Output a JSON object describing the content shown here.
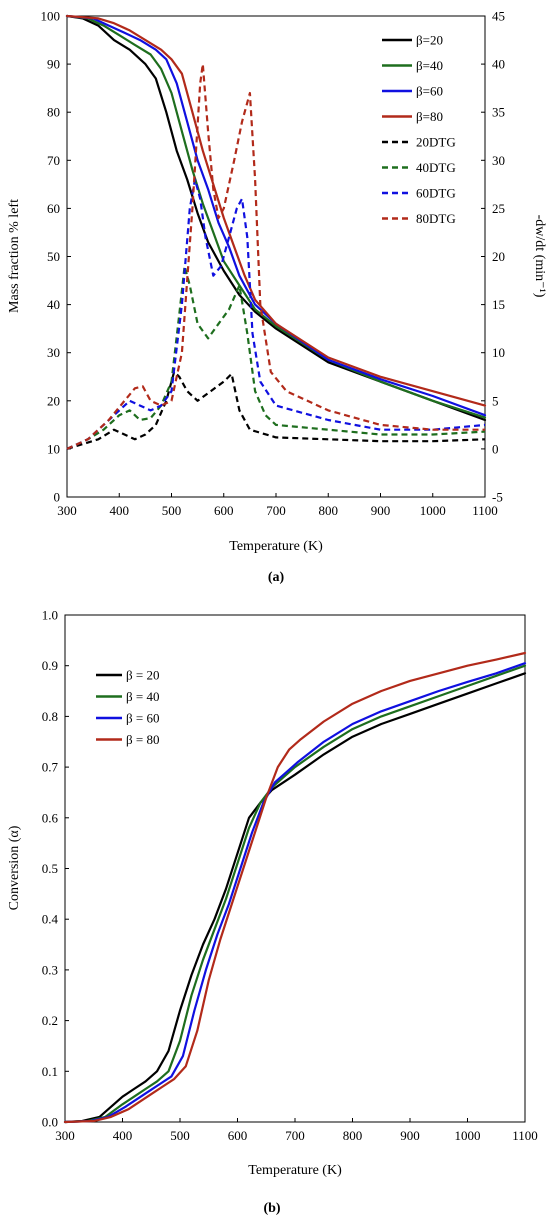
{
  "chart_data": [
    {
      "type": "line",
      "panel": "a",
      "caption": "(a)",
      "xlabel": "Temperature (K)",
      "ylabel": "Mass fraction % left",
      "y2label": "-dw/dt (min⁻¹)",
      "xlim": [
        300,
        1100
      ],
      "ylim": [
        0,
        100
      ],
      "y2lim": [
        -5,
        45
      ],
      "xticks": [
        "300",
        "400",
        "500",
        "600",
        "700",
        "800",
        "900",
        "1000",
        "1100"
      ],
      "yticks": [
        "0",
        "10",
        "20",
        "30",
        "40",
        "50",
        "60",
        "70",
        "80",
        "90",
        "100"
      ],
      "y2ticks": [
        "-5",
        "0",
        "5",
        "10",
        "15",
        "20",
        "25",
        "30",
        "35",
        "40",
        "45"
      ],
      "legend_position": "top-right",
      "series": [
        {
          "name": "β=20",
          "axis": "left",
          "color": "#000000",
          "dash": "solid",
          "x": [
            300,
            330,
            360,
            390,
            420,
            450,
            470,
            490,
            500,
            510,
            530,
            550,
            570,
            600,
            630,
            660,
            700,
            800,
            900,
            1000,
            1100
          ],
          "y": [
            100,
            99.5,
            98,
            95,
            93,
            90,
            87,
            80,
            76,
            72,
            66,
            59,
            53,
            47,
            42,
            38.5,
            35,
            28,
            24,
            20,
            16
          ]
        },
        {
          "name": "β=40",
          "axis": "left",
          "color": "#1e6e1e",
          "dash": "solid",
          "x": [
            300,
            340,
            370,
            400,
            430,
            460,
            480,
            500,
            520,
            540,
            560,
            580,
            600,
            630,
            660,
            700,
            800,
            900,
            1000,
            1100
          ],
          "y": [
            100,
            99.5,
            98,
            96,
            94,
            92,
            89,
            84,
            76,
            68,
            61,
            55,
            49,
            44,
            39,
            35.5,
            28.5,
            24,
            20,
            16.5
          ]
        },
        {
          "name": "β=60",
          "axis": "left",
          "color": "#1010e0",
          "dash": "solid",
          "x": [
            300,
            350,
            380,
            410,
            440,
            470,
            490,
            510,
            530,
            550,
            570,
            590,
            610,
            630,
            660,
            700,
            800,
            900,
            1000,
            1100
          ],
          "y": [
            100,
            99.5,
            98,
            96.5,
            95,
            93,
            91,
            86,
            78,
            70,
            64,
            57,
            52,
            46,
            40,
            36,
            28.5,
            24.5,
            21,
            17
          ]
        },
        {
          "name": "β=80",
          "axis": "left",
          "color": "#b22a1a",
          "dash": "solid",
          "x": [
            300,
            360,
            390,
            420,
            450,
            480,
            500,
            520,
            540,
            560,
            580,
            600,
            620,
            640,
            660,
            700,
            800,
            900,
            1000,
            1100
          ],
          "y": [
            100,
            99.5,
            98.5,
            97,
            95,
            93,
            91,
            88,
            80,
            72,
            65,
            58,
            52,
            46,
            41,
            36,
            29,
            25,
            22,
            19
          ]
        },
        {
          "name": "20DTG",
          "axis": "right",
          "color": "#000000",
          "dash": "dashed",
          "x": [
            300,
            330,
            360,
            390,
            410,
            430,
            450,
            470,
            490,
            505,
            515,
            530,
            550,
            575,
            600,
            615,
            630,
            650,
            700,
            800,
            900,
            1000,
            1100
          ],
          "y": [
            0,
            0.5,
            1,
            2,
            1.5,
            1,
            1.5,
            2.5,
            5,
            8,
            7.5,
            6,
            5,
            6,
            7,
            7.8,
            4,
            2,
            1.2,
            1,
            0.8,
            0.8,
            1
          ]
        },
        {
          "name": "40DTG",
          "axis": "right",
          "color": "#1e6e1e",
          "dash": "dashed",
          "x": [
            300,
            340,
            370,
            400,
            420,
            440,
            460,
            480,
            500,
            515,
            525,
            535,
            550,
            570,
            590,
            610,
            630,
            645,
            660,
            680,
            700,
            800,
            900,
            1000,
            1100
          ],
          "y": [
            0,
            1,
            2,
            3.5,
            4,
            3,
            3.2,
            4.5,
            7,
            14,
            19,
            17,
            13,
            11.5,
            13,
            14.5,
            17,
            12,
            6,
            3.5,
            2.5,
            2,
            1.5,
            1.5,
            1.8
          ]
        },
        {
          "name": "60DTG",
          "axis": "right",
          "color": "#1010e0",
          "dash": "dashed",
          "x": [
            300,
            340,
            370,
            400,
            420,
            440,
            460,
            480,
            500,
            520,
            535,
            545,
            555,
            565,
            580,
            595,
            610,
            625,
            635,
            645,
            655,
            670,
            700,
            800,
            900,
            1000,
            1100
          ],
          "y": [
            0,
            1,
            2.5,
            4,
            5,
            4.5,
            4,
            4.5,
            6,
            15,
            25,
            28,
            26,
            22,
            18,
            19,
            22,
            25,
            26,
            22,
            12,
            7,
            4.5,
            3,
            2,
            2,
            2.5
          ]
        },
        {
          "name": "80DTG",
          "axis": "right",
          "color": "#b22a1a",
          "dash": "dashed",
          "x": [
            300,
            340,
            380,
            410,
            430,
            445,
            460,
            480,
            500,
            520,
            540,
            555,
            560,
            570,
            580,
            590,
            600,
            620,
            635,
            645,
            650,
            660,
            670,
            690,
            720,
            800,
            900,
            1000,
            1100
          ],
          "y": [
            0,
            1,
            3,
            5,
            6.3,
            6.5,
            5,
            4.5,
            5,
            10,
            25,
            38,
            40,
            33,
            27,
            24,
            25,
            30,
            34,
            36,
            37,
            28,
            15,
            8,
            6,
            4,
            2.5,
            2,
            2
          ]
        }
      ]
    },
    {
      "type": "line",
      "panel": "b",
      "caption": "(b)",
      "xlabel": "Temperature (K)",
      "ylabel": "Conversion (α)",
      "xlim": [
        300,
        1100
      ],
      "ylim": [
        0,
        1
      ],
      "xticks": [
        "300",
        "400",
        "500",
        "600",
        "700",
        "800",
        "900",
        "1000",
        "1100"
      ],
      "yticks": [
        "0.0",
        "0.1",
        "0.2",
        "0.3",
        "0.4",
        "0.5",
        "0.6",
        "0.7",
        "0.8",
        "0.9",
        "1.0"
      ],
      "legend_position": "top-left",
      "series": [
        {
          "name": "β = 20",
          "color": "#000000",
          "x": [
            300,
            330,
            360,
            380,
            400,
            420,
            440,
            460,
            480,
            500,
            520,
            540,
            560,
            580,
            600,
            620,
            640,
            660,
            680,
            700,
            750,
            800,
            850,
            900,
            950,
            1000,
            1050,
            1100
          ],
          "y": [
            0,
            0.002,
            0.01,
            0.03,
            0.05,
            0.065,
            0.08,
            0.1,
            0.14,
            0.22,
            0.29,
            0.35,
            0.4,
            0.46,
            0.53,
            0.6,
            0.63,
            0.655,
            0.67,
            0.685,
            0.725,
            0.76,
            0.785,
            0.805,
            0.825,
            0.845,
            0.865,
            0.885
          ]
        },
        {
          "name": "β = 40",
          "color": "#1e6e1e",
          "x": [
            300,
            340,
            370,
            400,
            420,
            440,
            460,
            480,
            500,
            520,
            540,
            560,
            580,
            600,
            620,
            640,
            660,
            680,
            700,
            750,
            800,
            850,
            900,
            950,
            1000,
            1050,
            1100
          ],
          "y": [
            0,
            0.002,
            0.01,
            0.035,
            0.05,
            0.065,
            0.08,
            0.1,
            0.16,
            0.25,
            0.32,
            0.38,
            0.44,
            0.51,
            0.58,
            0.63,
            0.66,
            0.68,
            0.7,
            0.74,
            0.775,
            0.8,
            0.82,
            0.84,
            0.86,
            0.88,
            0.9
          ]
        },
        {
          "name": "β = 60",
          "color": "#1010e0",
          "x": [
            300,
            345,
            375,
            405,
            425,
            445,
            465,
            485,
            505,
            525,
            545,
            565,
            585,
            605,
            625,
            645,
            665,
            685,
            705,
            750,
            800,
            850,
            900,
            950,
            1000,
            1050,
            1100
          ],
          "y": [
            0,
            0.002,
            0.01,
            0.03,
            0.045,
            0.06,
            0.075,
            0.09,
            0.13,
            0.22,
            0.3,
            0.37,
            0.43,
            0.5,
            0.57,
            0.63,
            0.67,
            0.69,
            0.71,
            0.75,
            0.785,
            0.81,
            0.83,
            0.85,
            0.868,
            0.885,
            0.905
          ]
        },
        {
          "name": "β = 80",
          "color": "#b22a1a",
          "x": [
            300,
            350,
            380,
            410,
            430,
            450,
            470,
            490,
            510,
            530,
            550,
            570,
            590,
            610,
            630,
            650,
            670,
            690,
            710,
            750,
            800,
            850,
            900,
            950,
            1000,
            1050,
            1100
          ],
          "y": [
            0,
            0.002,
            0.01,
            0.025,
            0.04,
            0.055,
            0.07,
            0.085,
            0.11,
            0.18,
            0.28,
            0.36,
            0.43,
            0.5,
            0.57,
            0.64,
            0.7,
            0.735,
            0.755,
            0.79,
            0.825,
            0.85,
            0.87,
            0.885,
            0.9,
            0.912,
            0.925
          ]
        }
      ]
    }
  ]
}
